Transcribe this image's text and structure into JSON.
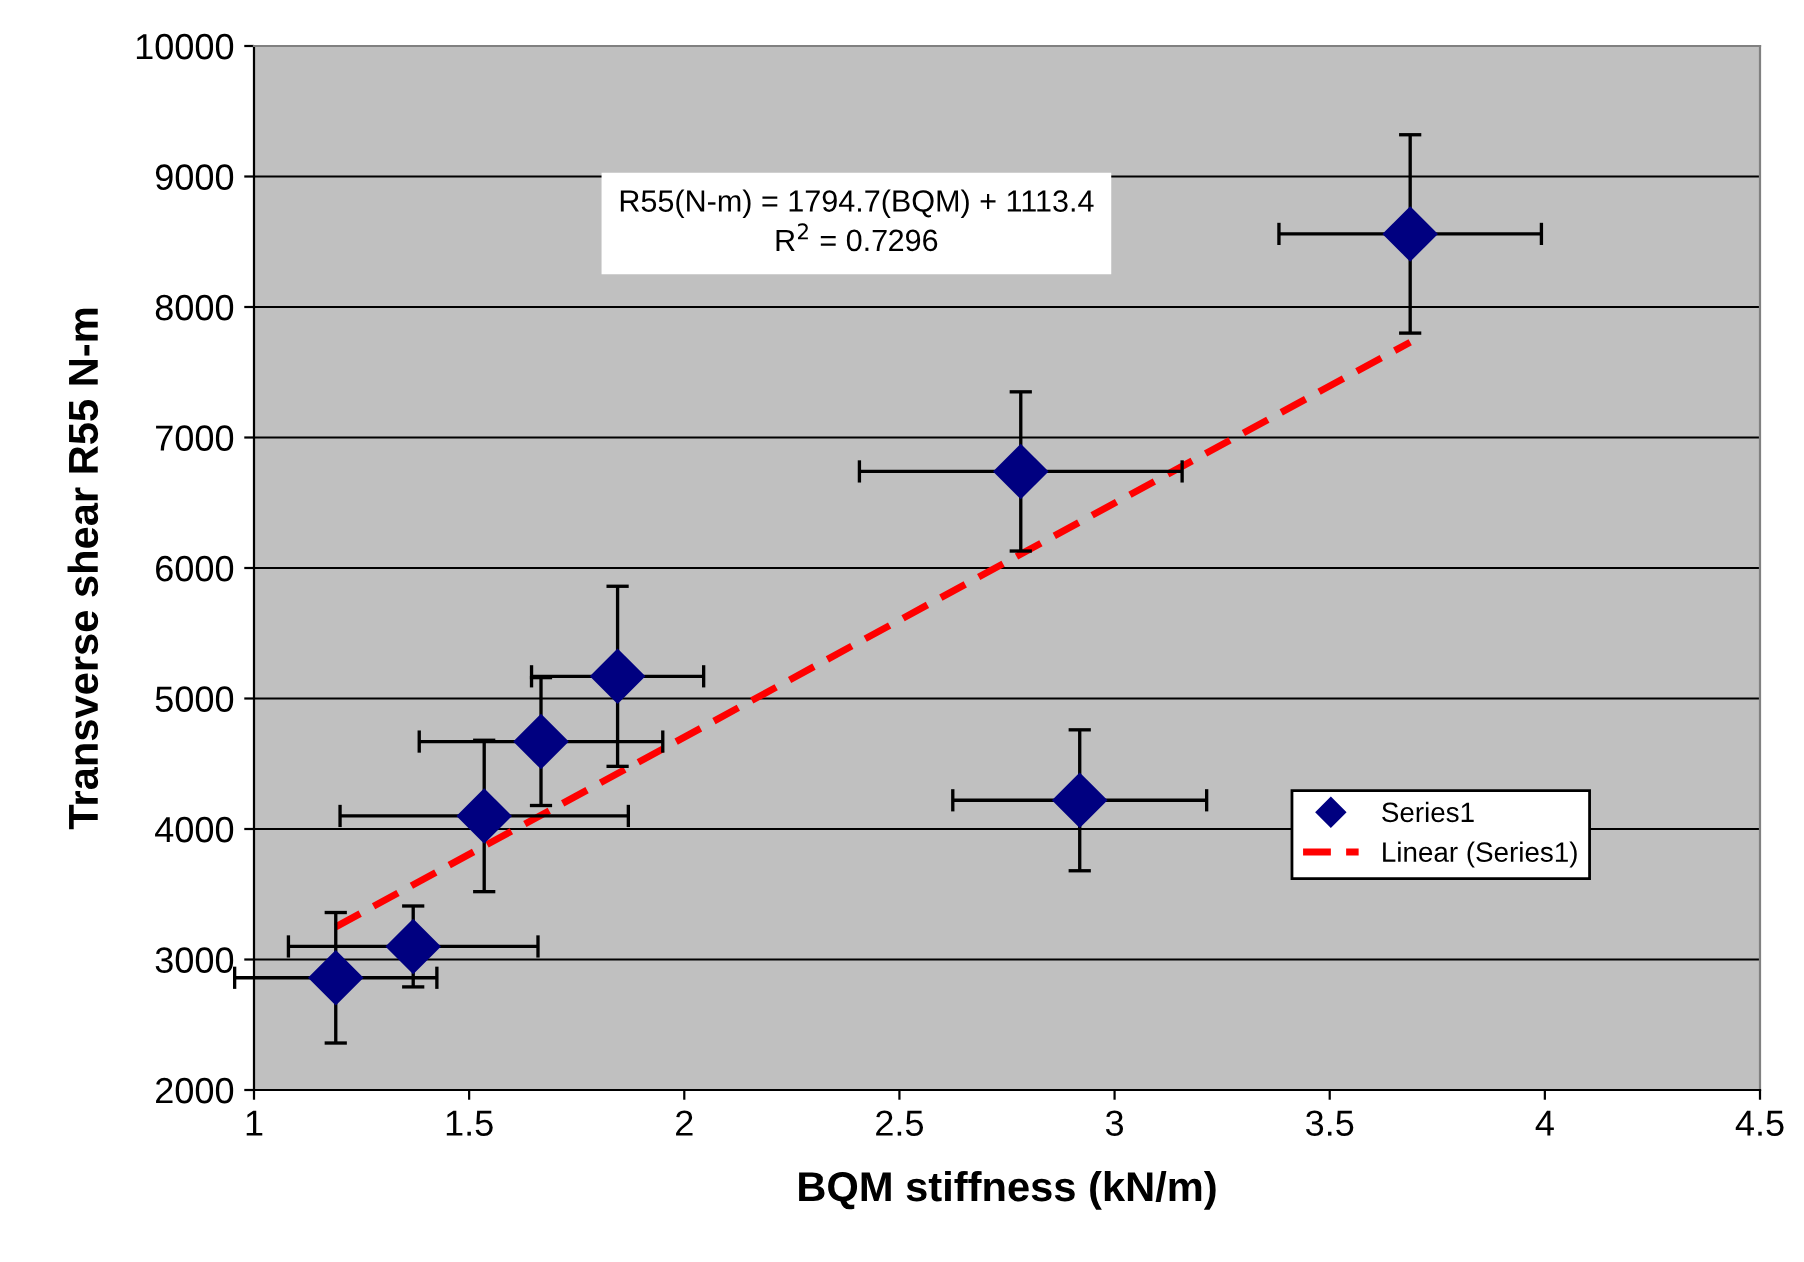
{
  "chart_data": {
    "type": "scatter",
    "xlabel": "BQM stiffness (kN/m)",
    "ylabel": "Transverse shear R55 N-m",
    "annotations": [
      "R55(N-m) = 1794.7(BQM) + 1113.4\nR$^{2}$ = 0.7296"
    ],
    "series": [
      {
        "name": "Series1",
        "color": "#000080",
        "marker": "diamond",
        "x": [
          1.19,
          1.37,
          1.535,
          1.667,
          1.845,
          2.782,
          2.919,
          3.687
        ],
        "values": [
          2860,
          3100,
          4100,
          4670,
          5170,
          6740,
          4220,
          8560
        ],
        "errors": [
          500,
          310,
          580,
          490,
          690,
          610,
          540,
          760
        ],
        "xerrors": [
          0.235,
          0.29,
          0.335,
          0.283,
          0.2,
          0.375,
          0.295,
          0.305
        ]
      },
      {
        "name": "Linear (Series1)",
        "type": "line",
        "color": "#ff0000",
        "line_style": "dashed",
        "marker": "none",
        "x": [
          1.19,
          3.687
        ],
        "values": [
          3250,
          7730
        ]
      }
    ],
    "xlim": [
      1,
      4.5
    ],
    "ylim": [
      2000,
      10000
    ],
    "xticks": [
      1,
      1.5,
      2,
      2.5,
      3,
      3.5,
      4,
      4.5
    ],
    "yticks": [
      2000,
      3000,
      4000,
      5000,
      6000,
      7000,
      8000,
      9000,
      10000
    ],
    "grid": "y",
    "legend": "right"
  }
}
